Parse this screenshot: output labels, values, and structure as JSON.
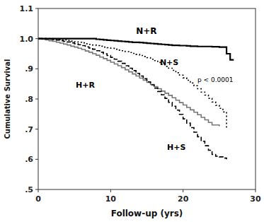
{
  "chart_data": {
    "type": "step",
    "xlabel": "Follow-up (yrs)",
    "ylabel": "Cumulative Survival",
    "xlim": [
      0,
      30
    ],
    "ylim": [
      0.5,
      1.1
    ],
    "xticks": [
      0,
      10,
      20,
      30
    ],
    "yticks": [
      {
        "value": 0.5,
        "label": ".5"
      },
      {
        "value": 0.6,
        "label": ".6"
      },
      {
        "value": 0.7,
        "label": ".7"
      },
      {
        "value": 0.8,
        "label": ".8"
      },
      {
        "value": 0.9,
        "label": ".9"
      },
      {
        "value": 1.0,
        "label": "1.0"
      },
      1.1
    ],
    "grid": false,
    "annotations": [
      "p < 0.0001"
    ],
    "series": [
      {
        "name": "H+R",
        "color": "#777777",
        "line_style": "solid",
        "x": [
          0,
          0.5,
          1,
          1.5,
          2,
          2.5,
          3,
          3.5,
          4,
          4.5,
          5,
          5.5,
          6,
          6.5,
          7,
          7.5,
          8,
          8.5,
          9,
          9.5,
          10,
          10.5,
          11,
          11.5,
          12,
          12.5,
          13,
          13.5,
          14,
          14.5,
          15,
          15.5,
          16,
          16.5,
          17,
          17.5,
          18,
          18.5,
          19,
          19.5,
          20,
          20.5,
          21,
          21.5,
          22,
          22.5,
          23,
          23.5,
          24,
          24.5,
          25
        ],
        "values": [
          1.0,
          0.998,
          0.996,
          0.993,
          0.991,
          0.988,
          0.985,
          0.982,
          0.979,
          0.975,
          0.972,
          0.968,
          0.964,
          0.959,
          0.955,
          0.95,
          0.945,
          0.939,
          0.934,
          0.928,
          0.922,
          0.916,
          0.91,
          0.904,
          0.897,
          0.89,
          0.883,
          0.876,
          0.869,
          0.862,
          0.855,
          0.848,
          0.841,
          0.834,
          0.826,
          0.819,
          0.812,
          0.804,
          0.796,
          0.788,
          0.78,
          0.772,
          0.764,
          0.756,
          0.748,
          0.739,
          0.731,
          0.722,
          0.714,
          0.714,
          0.71
        ]
      },
      {
        "name": "H+S",
        "color": "black",
        "line_style": "dashed",
        "x": [
          0,
          0.5,
          1,
          1.5,
          2,
          2.5,
          3,
          3.5,
          4,
          4.5,
          5,
          5.5,
          6,
          6.5,
          7,
          7.5,
          8,
          8.5,
          9,
          9.5,
          10,
          10.5,
          11,
          11.5,
          12,
          12.5,
          13,
          13.5,
          14,
          14.5,
          15,
          15.5,
          16,
          16.5,
          17,
          17.5,
          18,
          18.5,
          19,
          19.5,
          20,
          20.5,
          21,
          21.5,
          22,
          22.5,
          23,
          23.5,
          24,
          24.5,
          25,
          25.5,
          26
        ],
        "values": [
          1.0,
          1.0,
          0.999,
          0.998,
          0.997,
          0.995,
          0.993,
          0.991,
          0.989,
          0.986,
          0.983,
          0.98,
          0.977,
          0.973,
          0.969,
          0.965,
          0.96,
          0.955,
          0.95,
          0.944,
          0.938,
          0.932,
          0.925,
          0.918,
          0.91,
          0.902,
          0.894,
          0.885,
          0.876,
          0.867,
          0.857,
          0.847,
          0.836,
          0.825,
          0.814,
          0.802,
          0.789,
          0.776,
          0.763,
          0.749,
          0.734,
          0.72,
          0.705,
          0.69,
          0.675,
          0.66,
          0.645,
          0.63,
          0.616,
          0.61,
          0.608,
          0.604,
          0.6
        ]
      },
      {
        "name": "N+S",
        "color": "black",
        "line_style": "dotted",
        "x": [
          0,
          0.5,
          1,
          1.5,
          2,
          2.5,
          3,
          3.5,
          4,
          4.5,
          5,
          5.5,
          6,
          6.5,
          7,
          7.5,
          8,
          8.5,
          9,
          9.5,
          10,
          10.5,
          11,
          11.5,
          12,
          12.5,
          13,
          13.5,
          14,
          14.5,
          15,
          15.5,
          16,
          16.5,
          17,
          17.5,
          18,
          18.5,
          19,
          19.5,
          20,
          20.5,
          21,
          21.5,
          22,
          22.5,
          23,
          23.5,
          24,
          24.5,
          25,
          25.5,
          26
        ],
        "values": [
          1.0,
          1.0,
          1.0,
          1.0,
          0.999,
          0.998,
          0.997,
          0.996,
          0.994,
          0.992,
          0.99,
          0.988,
          0.986,
          0.983,
          0.981,
          0.979,
          0.977,
          0.975,
          0.972,
          0.97,
          0.968,
          0.965,
          0.962,
          0.96,
          0.957,
          0.954,
          0.951,
          0.948,
          0.944,
          0.941,
          0.937,
          0.932,
          0.927,
          0.921,
          0.915,
          0.908,
          0.902,
          0.895,
          0.887,
          0.879,
          0.87,
          0.862,
          0.853,
          0.844,
          0.834,
          0.823,
          0.813,
          0.802,
          0.79,
          0.779,
          0.769,
          0.757,
          0.7
        ]
      },
      {
        "name": "N+R",
        "color": "black",
        "line_style": "solid",
        "x": [
          0,
          0.5,
          1,
          1.5,
          2,
          2.5,
          3,
          3.5,
          4,
          4.5,
          5,
          5.5,
          6,
          6.5,
          7,
          7.5,
          8,
          8.5,
          9,
          9.5,
          10,
          10.5,
          11,
          11.5,
          12,
          12.5,
          13,
          13.5,
          14,
          14.5,
          15,
          15.5,
          16,
          16.5,
          17,
          17.5,
          18,
          18.5,
          19,
          19.5,
          20,
          20.5,
          21,
          21.5,
          22,
          22.5,
          23,
          23.5,
          24,
          24.5,
          25,
          25.5,
          26,
          26.5,
          27
        ],
        "values": [
          1.0,
          1.0,
          1.0,
          1.0,
          1.0,
          1.0,
          1.0,
          1.0,
          1.0,
          1.0,
          1.0,
          1.0,
          1.0,
          1.0,
          1.0,
          1.0,
          0.998,
          0.997,
          0.996,
          0.995,
          0.994,
          0.993,
          0.992,
          0.991,
          0.99,
          0.989,
          0.988,
          0.988,
          0.987,
          0.986,
          0.985,
          0.984,
          0.983,
          0.982,
          0.981,
          0.98,
          0.979,
          0.978,
          0.978,
          0.977,
          0.977,
          0.976,
          0.975,
          0.975,
          0.974,
          0.974,
          0.974,
          0.974,
          0.973,
          0.973,
          0.972,
          0.972,
          0.95,
          0.93,
          0.93
        ]
      }
    ]
  }
}
